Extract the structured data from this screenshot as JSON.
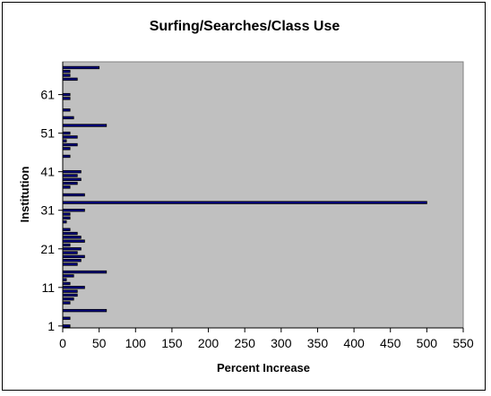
{
  "chart_data": {
    "type": "bar",
    "orientation": "horizontal",
    "title": "Surfing/Searches/Class Use",
    "xlabel": "Percent Increase",
    "ylabel": "Institution",
    "xlim": [
      0,
      550
    ],
    "xticks": [
      0,
      50,
      100,
      150,
      200,
      250,
      300,
      350,
      400,
      450,
      500,
      550
    ],
    "yticks": [
      1,
      11,
      21,
      31,
      41,
      51,
      61
    ],
    "ylim": [
      0.5,
      69.5
    ],
    "legend": "none",
    "plot_background": "#c0c0c0",
    "bar_fill": "#000080",
    "bar_edge": "#000000",
    "categories": [
      1,
      2,
      3,
      4,
      5,
      6,
      7,
      8,
      9,
      10,
      11,
      12,
      13,
      14,
      15,
      16,
      17,
      18,
      19,
      20,
      21,
      22,
      23,
      24,
      25,
      26,
      27,
      28,
      29,
      30,
      31,
      32,
      33,
      34,
      35,
      36,
      37,
      38,
      39,
      40,
      41,
      42,
      43,
      44,
      45,
      46,
      47,
      48,
      49,
      50,
      51,
      52,
      53,
      54,
      55,
      56,
      57,
      58,
      59,
      60,
      61,
      62,
      63,
      64,
      65,
      66,
      67,
      68,
      69
    ],
    "values": [
      10,
      0,
      10,
      0,
      60,
      0,
      10,
      15,
      20,
      20,
      30,
      10,
      5,
      15,
      60,
      0,
      20,
      25,
      30,
      20,
      25,
      10,
      30,
      25,
      20,
      10,
      0,
      5,
      10,
      10,
      30,
      0,
      500,
      0,
      30,
      0,
      10,
      20,
      25,
      20,
      25,
      0,
      0,
      0,
      10,
      0,
      10,
      20,
      5,
      20,
      10,
      0,
      60,
      0,
      15,
      0,
      10,
      0,
      0,
      10,
      10,
      0,
      0,
      0,
      20,
      10,
      10,
      50,
      0
    ]
  }
}
